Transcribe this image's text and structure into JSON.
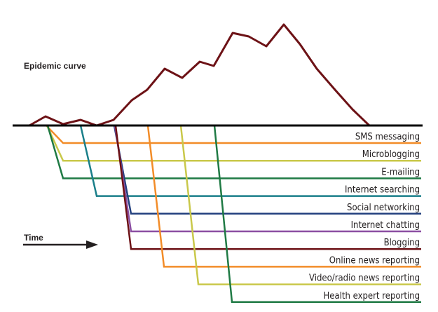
{
  "diagram": {
    "curve_label": "Epidemic curve",
    "time_label": "Time",
    "baseline_color": "#000000",
    "curve_color": "#6d1216",
    "channels": [
      {
        "label": "SMS messaging",
        "color": "#f28c28"
      },
      {
        "label": "Microblogging",
        "color": "#c9c84a"
      },
      {
        "label": "E-mailing",
        "color": "#1f7a44"
      },
      {
        "label": "Internet searching",
        "color": "#1a7f8a"
      },
      {
        "label": "Social networking",
        "color": "#23407e"
      },
      {
        "label": "Internet chatting",
        "color": "#8b4ea2"
      },
      {
        "label": "Blogging",
        "color": "#6d1216"
      },
      {
        "label": "Online news reporting",
        "color": "#f28c28"
      },
      {
        "label": "Video/radio news reporting",
        "color": "#c9c84a"
      },
      {
        "label": "Health expert reporting",
        "color": "#1f7a44"
      }
    ]
  }
}
